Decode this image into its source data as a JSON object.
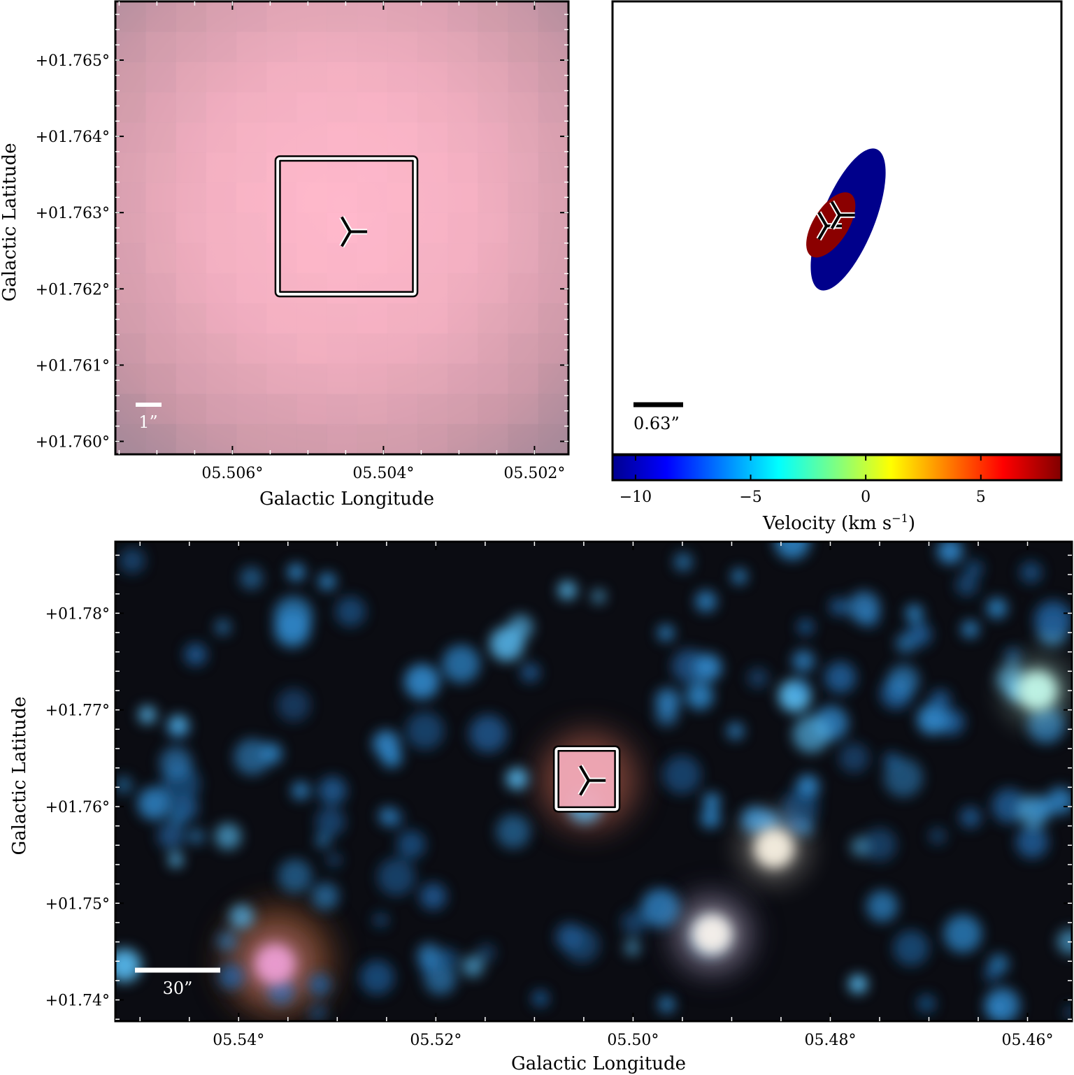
{
  "chart_data": [
    {
      "type": "image",
      "panel": "top-left",
      "xlabel": "Galactic Longitude",
      "ylabel": "Galactic Latitude",
      "xlim": [
        5.50755,
        5.50155
      ],
      "ylim": [
        1.75983,
        1.76577
      ],
      "xticks": [
        5.506,
        5.504,
        5.502
      ],
      "xtick_labels": [
        "05.506°",
        "05.504°",
        "05.502°"
      ],
      "yticks": [
        1.76,
        1.761,
        1.762,
        1.763,
        1.764,
        1.765
      ],
      "ytick_labels": [
        "+01.760°",
        "+01.761°",
        "+01.762°",
        "+01.763°",
        "+01.764°",
        "+01.765°"
      ],
      "source_marker": {
        "l": 5.50444,
        "b": 1.76275
      },
      "box": {
        "l_range": [
          5.5054,
          5.50358
        ],
        "b_range": [
          1.76193,
          1.76371
        ]
      },
      "scalebar_label": "1”",
      "colors": {
        "center": "#ffb8cc",
        "edge": "#a88a98",
        "bar": "#ffffff"
      }
    },
    {
      "type": "scatter",
      "panel": "top-right",
      "scalebar_label": "0.63”",
      "colorbar": {
        "label": "Velocity (km s",
        "label_sup": "−1",
        "label_end": ")",
        "range": [
          -11,
          8.5
        ],
        "ticks": [
          -10,
          -5,
          0,
          5
        ],
        "tick_labels": [
          "−10",
          "−5",
          "0",
          "5"
        ],
        "colormap": "jet"
      },
      "components": [
        {
          "velocity": -10.0,
          "color": "#00008b",
          "cx": 0.0,
          "cy": 0.0,
          "rx": 0.9,
          "ry": 3.5,
          "angle_deg": 22
        },
        {
          "velocity": 8.2,
          "color": "#8b0000",
          "cx": -0.8,
          "cy": -0.25,
          "rx": 0.6,
          "ry": 1.7,
          "angle_deg": 32
        }
      ],
      "markers": [
        {
          "x": -1.0,
          "y": -0.3
        },
        {
          "x": -0.4,
          "y": 0.2
        }
      ]
    },
    {
      "type": "image",
      "panel": "bottom",
      "xlabel": "Galactic Longitude",
      "ylabel": "Galactic Latitude",
      "xlim": [
        5.5525,
        5.4555
      ],
      "ylim": [
        1.7378,
        1.7874
      ],
      "xticks": [
        5.54,
        5.52,
        5.5,
        5.48,
        5.46
      ],
      "xtick_labels": [
        "05.54°",
        "05.52°",
        "05.50°",
        "05.48°",
        "05.46°"
      ],
      "yticks": [
        1.74,
        1.75,
        1.76,
        1.77,
        1.78
      ],
      "ytick_labels": [
        "+01.74°",
        "+01.75°",
        "+01.76°",
        "+01.77°",
        "+01.78°"
      ],
      "source_marker": {
        "l": 5.5045,
        "b": 1.7627
      },
      "box": {
        "l_range": [
          5.5078,
          5.5016
        ],
        "b_range": [
          1.7597,
          1.766
        ]
      },
      "scalebar_label": "30”",
      "bright_sources": [
        {
          "l": 5.5363,
          "b": 1.7437,
          "color": "#f0a0d8"
        },
        {
          "l": 5.492,
          "b": 1.7468,
          "color": "#fff8f0"
        },
        {
          "l": 5.4857,
          "b": 1.7557,
          "color": "#fff8e8"
        },
        {
          "l": 5.459,
          "b": 1.772,
          "color": "#c8fff0"
        }
      ],
      "colors": {
        "background": "#0a0c12",
        "stars": "#3a9ee0",
        "bar": "#ffffff"
      }
    }
  ]
}
